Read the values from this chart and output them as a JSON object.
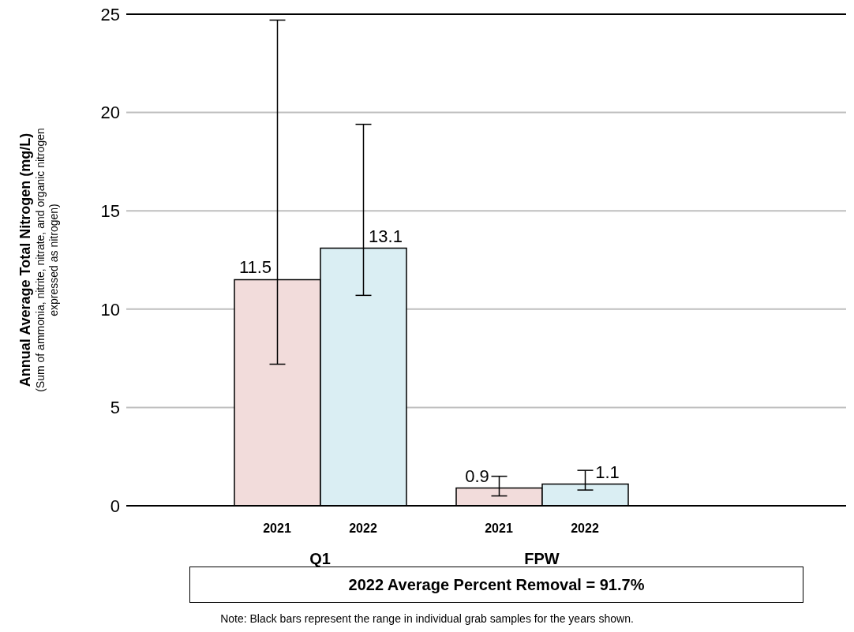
{
  "chart_data": {
    "type": "bar",
    "ylabel": "Annual Average Total Nitrogen (mg/L)\n(Sum of ammonia, nitrite, nitrate, and organic nitrogen expressed as nitrogen)",
    "categories": [
      "Q1",
      "FPW"
    ],
    "series": [
      {
        "name": "2021",
        "color": "#f2dcdb",
        "values": [
          11.5,
          0.9
        ],
        "errors": [
          [
            7.2,
            24.7
          ],
          [
            0.5,
            1.5
          ]
        ]
      },
      {
        "name": "2022",
        "color": "#daeef3",
        "values": [
          13.1,
          1.1
        ],
        "errors": [
          [
            10.7,
            19.4
          ],
          [
            0.8,
            1.8
          ]
        ]
      }
    ],
    "ylim": [
      0,
      25
    ],
    "yticks": [
      0,
      5,
      10,
      15,
      20,
      25
    ],
    "grid": "y",
    "data_labels": true,
    "annotations": [
      "2022 Average Percent Removal = 91.7%",
      "Note:  Black bars represent the range in individual grab samples for the years shown."
    ]
  }
}
